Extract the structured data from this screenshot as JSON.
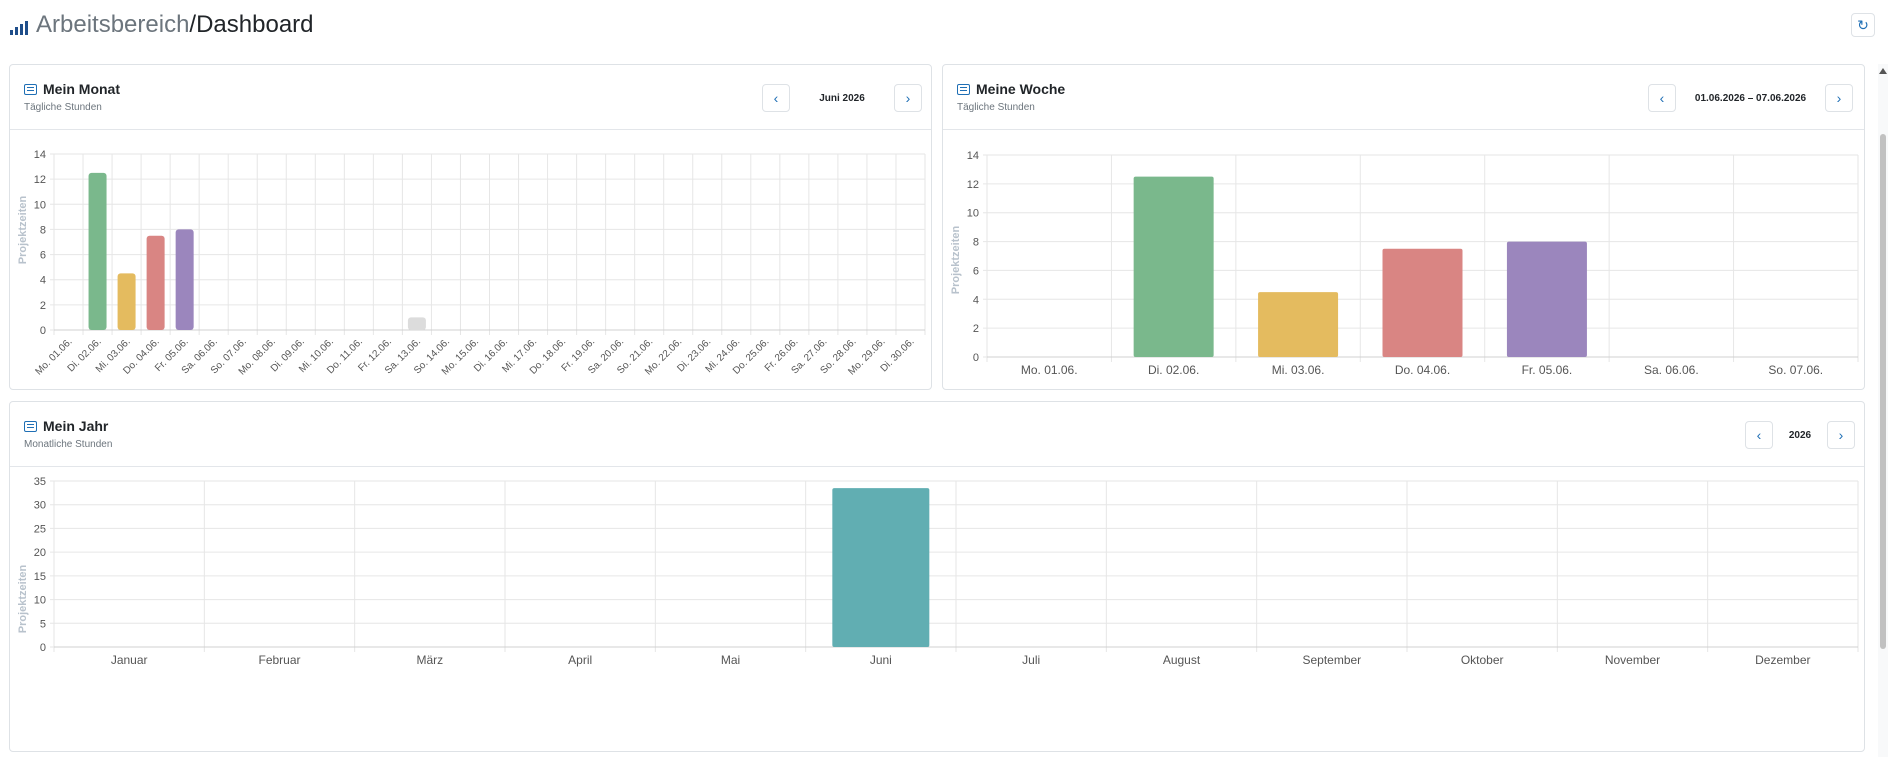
{
  "header": {
    "logo_icon": "bar-chart-icon",
    "crumb_parent": "Arbeitsbereich",
    "crumb_sep": "/",
    "crumb_current": "Dashboard",
    "refresh_icon": "refresh-icon"
  },
  "colors": {
    "green": "#7ab88c",
    "yellow": "#e4bb5f",
    "red": "#d98583",
    "purple": "#9b86bd",
    "gray": "#dcdcdc",
    "teal": "#61aeb2",
    "accent": "#1f6fb5"
  },
  "month": {
    "title": "Mein Monat",
    "subtitle": "Tägliche Stunden",
    "period": "Juni 2026",
    "prev_icon": "chevron-left-icon",
    "next_icon": "chevron-right-icon"
  },
  "week": {
    "title": "Meine Woche",
    "subtitle": "Tägliche Stunden",
    "period": "01.06.2026 – 07.06.2026",
    "prev_icon": "chevron-left-icon",
    "next_icon": "chevron-right-icon"
  },
  "year": {
    "title": "Mein Jahr",
    "subtitle": "Monatliche Stunden",
    "period": "2026",
    "prev_icon": "chevron-left-icon",
    "next_icon": "chevron-right-icon"
  },
  "chart_data": [
    {
      "type": "bar",
      "id": "month",
      "ylabel": "Projektzeiten",
      "ylim": [
        0,
        14
      ],
      "yticks": [
        0,
        2,
        4,
        6,
        8,
        10,
        12,
        14
      ],
      "grid": true,
      "categories": [
        "Mo. 01.06.",
        "Di. 02.06.",
        "Mi. 03.06.",
        "Do. 04.06.",
        "Fr. 05.06.",
        "Sa. 06.06.",
        "So. 07.06.",
        "Mo. 08.06.",
        "Di. 09.06.",
        "Mi. 10.06.",
        "Do. 11.06.",
        "Fr. 12.06.",
        "Sa. 13.06.",
        "So. 14.06.",
        "Mo. 15.06.",
        "Di. 16.06.",
        "Mi. 17.06.",
        "Do. 18.06.",
        "Fr. 19.06.",
        "Sa. 20.06.",
        "So. 21.06.",
        "Mo. 22.06.",
        "Di. 23.06.",
        "Mi. 24.06.",
        "Do. 25.06.",
        "Fr. 26.06.",
        "Sa. 27.06.",
        "So. 28.06.",
        "Mo. 29.06.",
        "Di. 30.06."
      ],
      "values": [
        0,
        12.5,
        4.5,
        7.5,
        8,
        0,
        0,
        0,
        0,
        0,
        0,
        0,
        1,
        0,
        0,
        0,
        0,
        0,
        0,
        0,
        0,
        0,
        0,
        0,
        0,
        0,
        0,
        0,
        0,
        0
      ],
      "bar_colors": [
        "green",
        "green",
        "yellow",
        "red",
        "purple",
        "gray",
        "gray",
        "gray",
        "gray",
        "gray",
        "gray",
        "gray",
        "gray",
        "gray",
        "gray",
        "gray",
        "gray",
        "gray",
        "gray",
        "gray",
        "gray",
        "gray",
        "gray",
        "gray",
        "gray",
        "gray",
        "gray",
        "gray",
        "gray",
        "gray"
      ]
    },
    {
      "type": "bar",
      "id": "week",
      "ylabel": "Projektzeiten",
      "ylim": [
        0,
        14
      ],
      "yticks": [
        0,
        2,
        4,
        6,
        8,
        10,
        12,
        14
      ],
      "grid": true,
      "categories": [
        "Mo. 01.06.",
        "Di. 02.06.",
        "Mi. 03.06.",
        "Do. 04.06.",
        "Fr. 05.06.",
        "Sa. 06.06.",
        "So. 07.06."
      ],
      "values": [
        0,
        12.5,
        4.5,
        7.5,
        8,
        0,
        0
      ],
      "bar_colors": [
        "green",
        "green",
        "yellow",
        "red",
        "purple",
        "gray",
        "gray"
      ]
    },
    {
      "type": "bar",
      "id": "year",
      "ylabel": "Projektzeiten",
      "ylim": [
        0,
        35
      ],
      "yticks": [
        0,
        5,
        10,
        15,
        20,
        25,
        30,
        35
      ],
      "grid": true,
      "categories": [
        "Januar",
        "Februar",
        "März",
        "April",
        "Mai",
        "Juni",
        "Juli",
        "August",
        "September",
        "Oktober",
        "November",
        "Dezember"
      ],
      "values": [
        0,
        0,
        0,
        0,
        0,
        33.5,
        0,
        0,
        0,
        0,
        0,
        0
      ],
      "bar_colors": [
        "teal",
        "teal",
        "teal",
        "teal",
        "teal",
        "teal",
        "teal",
        "teal",
        "teal",
        "teal",
        "teal",
        "teal"
      ]
    }
  ]
}
